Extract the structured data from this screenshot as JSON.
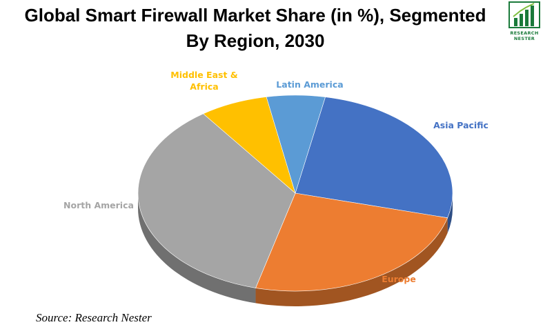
{
  "header": {
    "title_line1": "Global Smart Firewall Market Share (in %), Segmented",
    "title_line2": "By Region, 2030"
  },
  "logo": {
    "word1": "RESEARCH",
    "word2": "NESTER",
    "icon": "bar-chart-logo-icon",
    "color": "#1a7a3a"
  },
  "footer": {
    "source": "Source: Research Nester"
  },
  "chart_data": {
    "type": "pie",
    "style": "3d",
    "title": "Global Smart Firewall Market Share (in %), Segmented By Region, 2030",
    "data_labels_shown": false,
    "legend": "none",
    "slices": [
      {
        "label": "Asia Pacific",
        "value": 26,
        "color": "#4472c4",
        "label_color": "#4472c4"
      },
      {
        "label": "Europe",
        "value": 25,
        "color": "#ed7d31",
        "label_color": "#ed7d31"
      },
      {
        "label": "North America",
        "value": 36,
        "color": "#a5a5a5",
        "label_color": "#a5a5a5"
      },
      {
        "label": "Middle East & Africa",
        "label_lines": [
          "Middle East &",
          "Africa"
        ],
        "value": 7,
        "color": "#ffc000",
        "label_color": "#ffc000"
      },
      {
        "label": "Latin America",
        "value": 6,
        "color": "#5b9bd5",
        "label_color": "#5b9bd5"
      }
    ]
  }
}
